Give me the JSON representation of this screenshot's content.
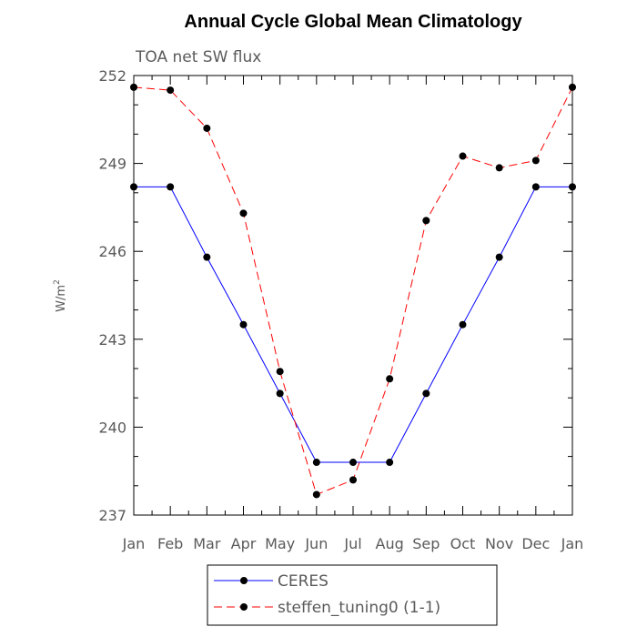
{
  "chart_data": {
    "type": "line",
    "title": "Annual Cycle Global Mean Climatology",
    "subtitle": "TOA net SW flux",
    "ylabel": "W/m",
    "ylabel_superscript": "2",
    "categories": [
      "Jan",
      "Feb",
      "Mar",
      "Apr",
      "May",
      "Jun",
      "Jul",
      "Aug",
      "Sep",
      "Oct",
      "Nov",
      "Dec",
      "Jan"
    ],
    "ylim": [
      237,
      252
    ],
    "yticks": [
      237,
      240,
      243,
      246,
      249,
      252
    ],
    "series": [
      {
        "name": "CERES",
        "color": "#0000ff",
        "dash": "solid",
        "values": [
          248.2,
          248.2,
          245.8,
          243.5,
          241.15,
          238.8,
          238.8,
          238.8,
          241.15,
          243.5,
          245.8,
          248.2,
          248.2
        ]
      },
      {
        "name": "steffen_tuning0 (1-1)",
        "color": "#ff0000",
        "dash": "dashed",
        "values": [
          251.6,
          251.5,
          250.2,
          247.3,
          241.9,
          237.7,
          238.2,
          241.65,
          247.05,
          249.25,
          248.85,
          249.1,
          251.6
        ]
      }
    ],
    "legend_position": "bottom"
  }
}
